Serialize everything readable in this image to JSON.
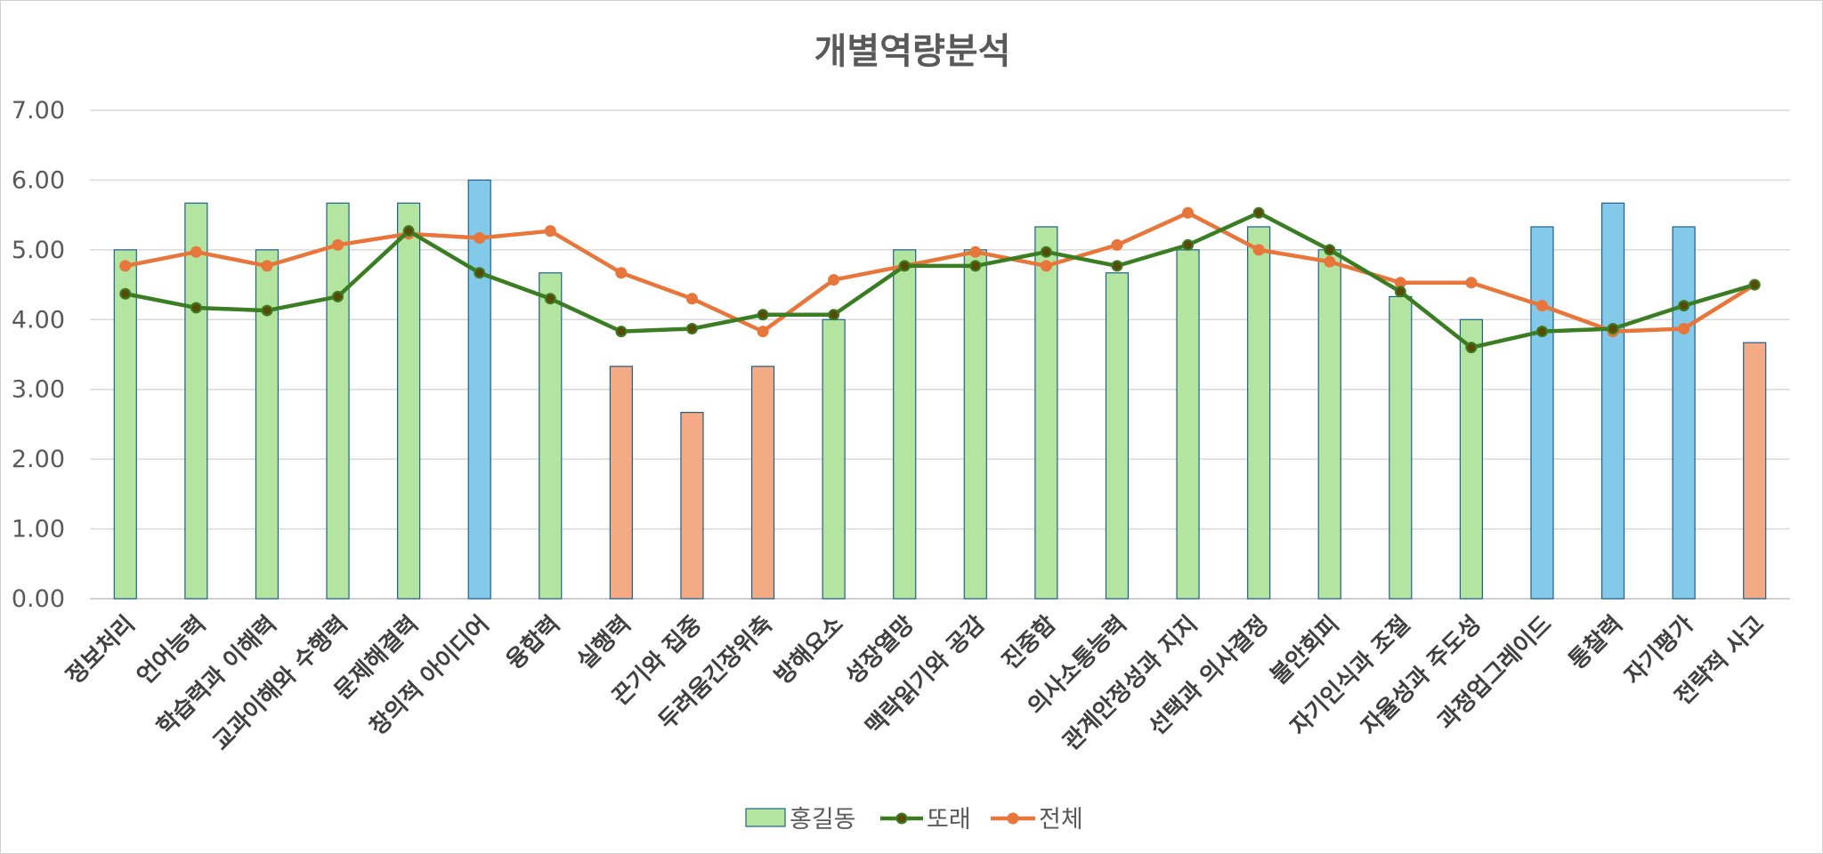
{
  "chart_data": {
    "type": "bar",
    "title": "개별역량분석",
    "xlabel": "",
    "ylabel": "",
    "ylim": [
      0,
      7
    ],
    "y_ticks": [
      "0.00",
      "1.00",
      "2.00",
      "3.00",
      "4.00",
      "5.00",
      "6.00",
      "7.00"
    ],
    "grid": true,
    "legend_position": "bottom",
    "categories": [
      "정보처리",
      "언어능력",
      "학습력과 이해력",
      "교과이해와 수행력",
      "문제해결력",
      "창의적 아이디어",
      "융합력",
      "실행력",
      "끈기와 집중",
      "두려움긴장위축",
      "방해요소",
      "성장열망",
      "맥락읽기와 공감",
      "진중함",
      "의사소통능력",
      "관계안정성과 지지",
      "선택과 의사결정",
      "불안회피",
      "자기인식과 조절",
      "자율성과 주도성",
      "과정업그레이드",
      "통찰력",
      "자기평가",
      "전략적 사고"
    ],
    "series": [
      {
        "name": "홍길동",
        "type": "bar",
        "color": "#b3e5a0",
        "values": [
          5.0,
          5.67,
          5.0,
          5.67,
          5.67,
          6.0,
          4.67,
          3.33,
          2.67,
          3.33,
          4.0,
          5.0,
          5.0,
          5.33,
          4.67,
          5.0,
          5.33,
          5.0,
          4.33,
          4.0,
          5.33,
          5.67,
          5.33,
          3.67
        ],
        "bar_colors": [
          "#b3e5a0",
          "#b3e5a0",
          "#b3e5a0",
          "#b3e5a0",
          "#b3e5a0",
          "#83c9ea",
          "#b3e5a0",
          "#f4aa84",
          "#f4aa84",
          "#f4aa84",
          "#b3e5a0",
          "#b3e5a0",
          "#b3e5a0",
          "#b3e5a0",
          "#b3e5a0",
          "#b3e5a0",
          "#b3e5a0",
          "#b3e5a0",
          "#b3e5a0",
          "#b3e5a0",
          "#83c9ea",
          "#83c9ea",
          "#83c9ea",
          "#f4aa84"
        ]
      },
      {
        "name": "또래",
        "type": "line",
        "color": "#3a7d22",
        "marker_color": "#5a4a08",
        "values": [
          4.37,
          4.17,
          4.13,
          4.33,
          5.27,
          4.67,
          4.3,
          3.83,
          3.87,
          4.07,
          4.07,
          4.77,
          4.77,
          4.97,
          4.77,
          5.07,
          5.53,
          5.0,
          4.4,
          3.6,
          3.83,
          3.87,
          4.2,
          4.5
        ]
      },
      {
        "name": "전체",
        "type": "line",
        "color": "#e8753a",
        "values": [
          4.77,
          4.97,
          4.77,
          5.07,
          5.23,
          5.17,
          5.27,
          4.67,
          4.3,
          3.83,
          4.57,
          4.77,
          4.97,
          4.77,
          5.07,
          5.53,
          5.0,
          4.83,
          4.53,
          4.53,
          4.2,
          3.83,
          3.87,
          4.5
        ]
      }
    ],
    "colors": {
      "gridline": "#d9d9d9",
      "bar_border": "#1f5f8b"
    }
  }
}
